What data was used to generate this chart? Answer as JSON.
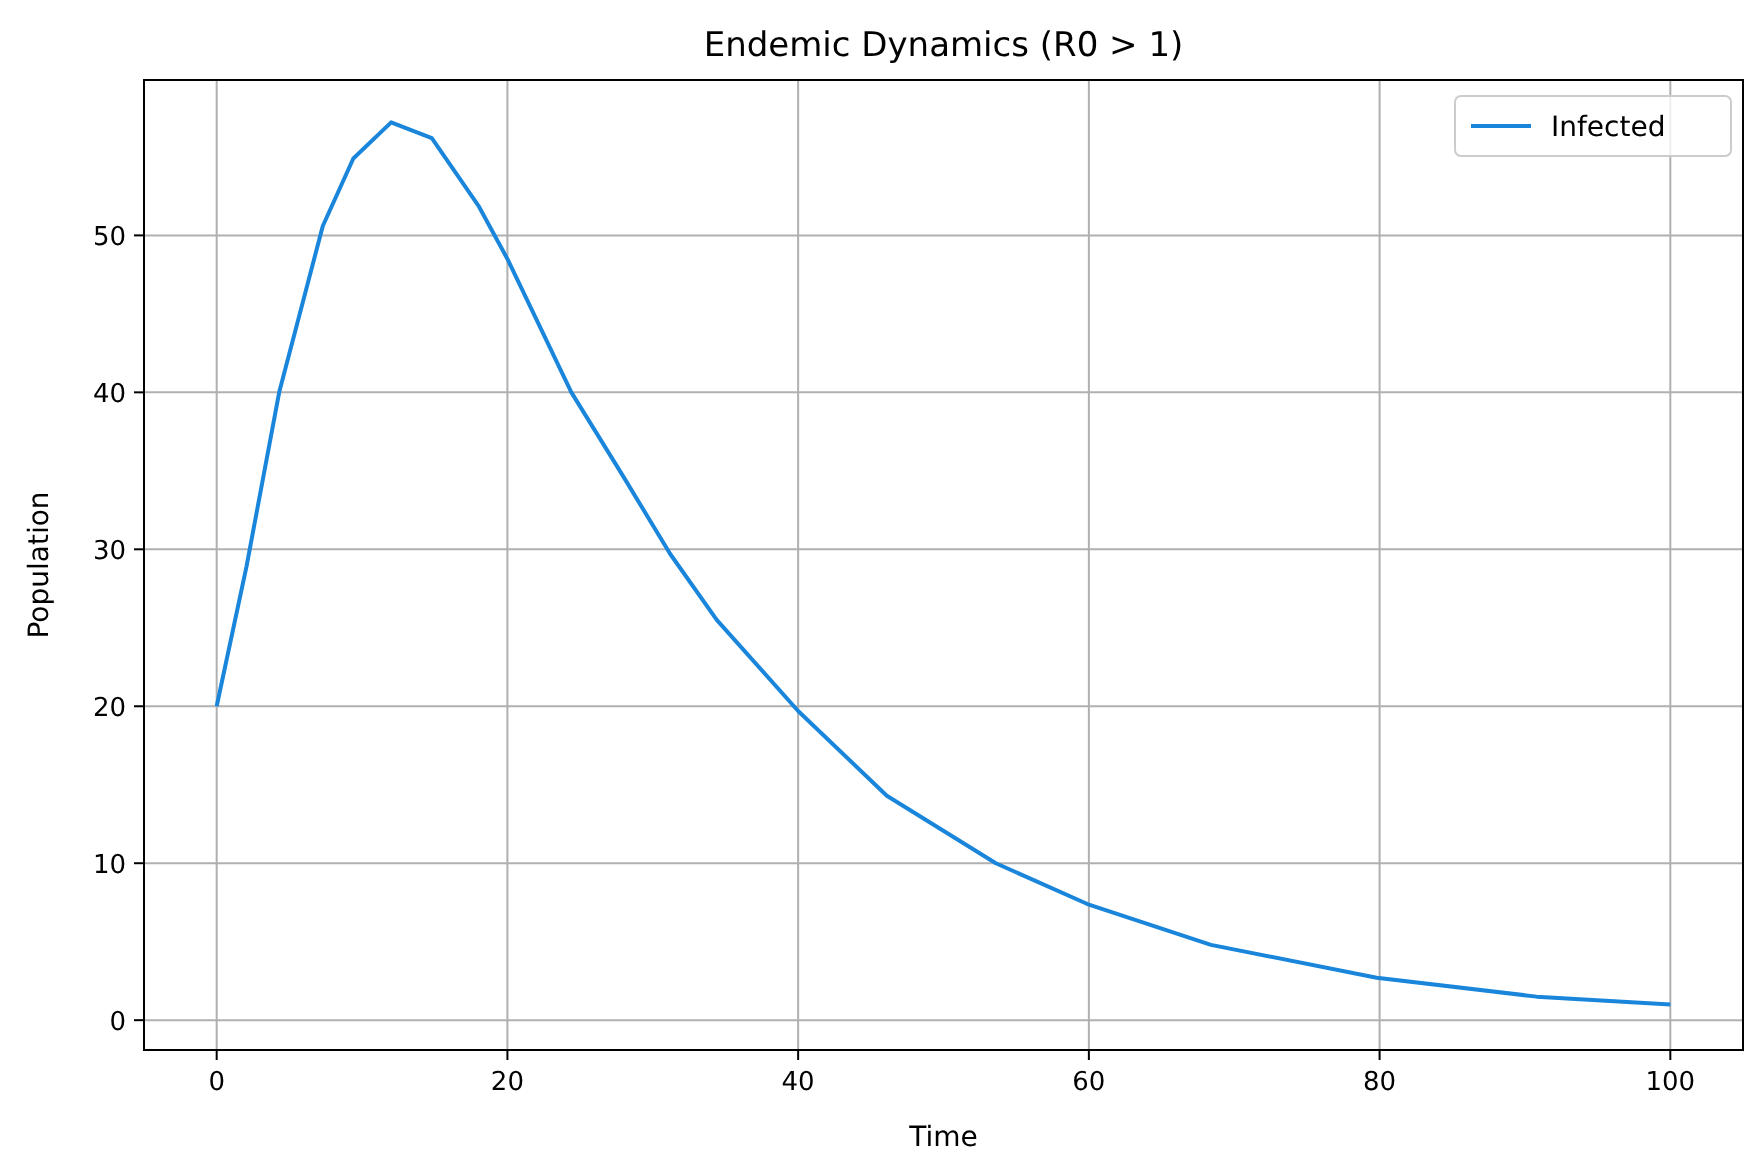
{
  "chart_data": {
    "type": "line",
    "title": "Endemic Dynamics (R0 > 1)",
    "xlabel": "Time",
    "ylabel": "Population",
    "xlim": [
      -5,
      105
    ],
    "ylim": [
      -1.9,
      59.9
    ],
    "xticks": [
      0,
      20,
      40,
      60,
      80,
      100
    ],
    "yticks": [
      0,
      10,
      20,
      30,
      40,
      50
    ],
    "grid": true,
    "legend": "top right",
    "line_style": "solid",
    "marker": "none",
    "series": [
      {
        "name": "Infected",
        "color": "#1a86db",
        "x": [
          0,
          2.05,
          4.3,
          7.3,
          9.4,
          12,
          14.8,
          18,
          20,
          24.4,
          28,
          31.2,
          34.4,
          40,
          46.1,
          53.6,
          59.9,
          68.4,
          79.8,
          90.8,
          100
        ],
        "values": [
          20,
          28.9,
          40,
          50.6,
          54.9,
          57.2,
          56.2,
          51.9,
          48.5,
          40,
          34.6,
          29.7,
          25.5,
          19.7,
          14.3,
          10,
          7.4,
          4.8,
          2.7,
          1.5,
          1.0
        ]
      }
    ]
  }
}
